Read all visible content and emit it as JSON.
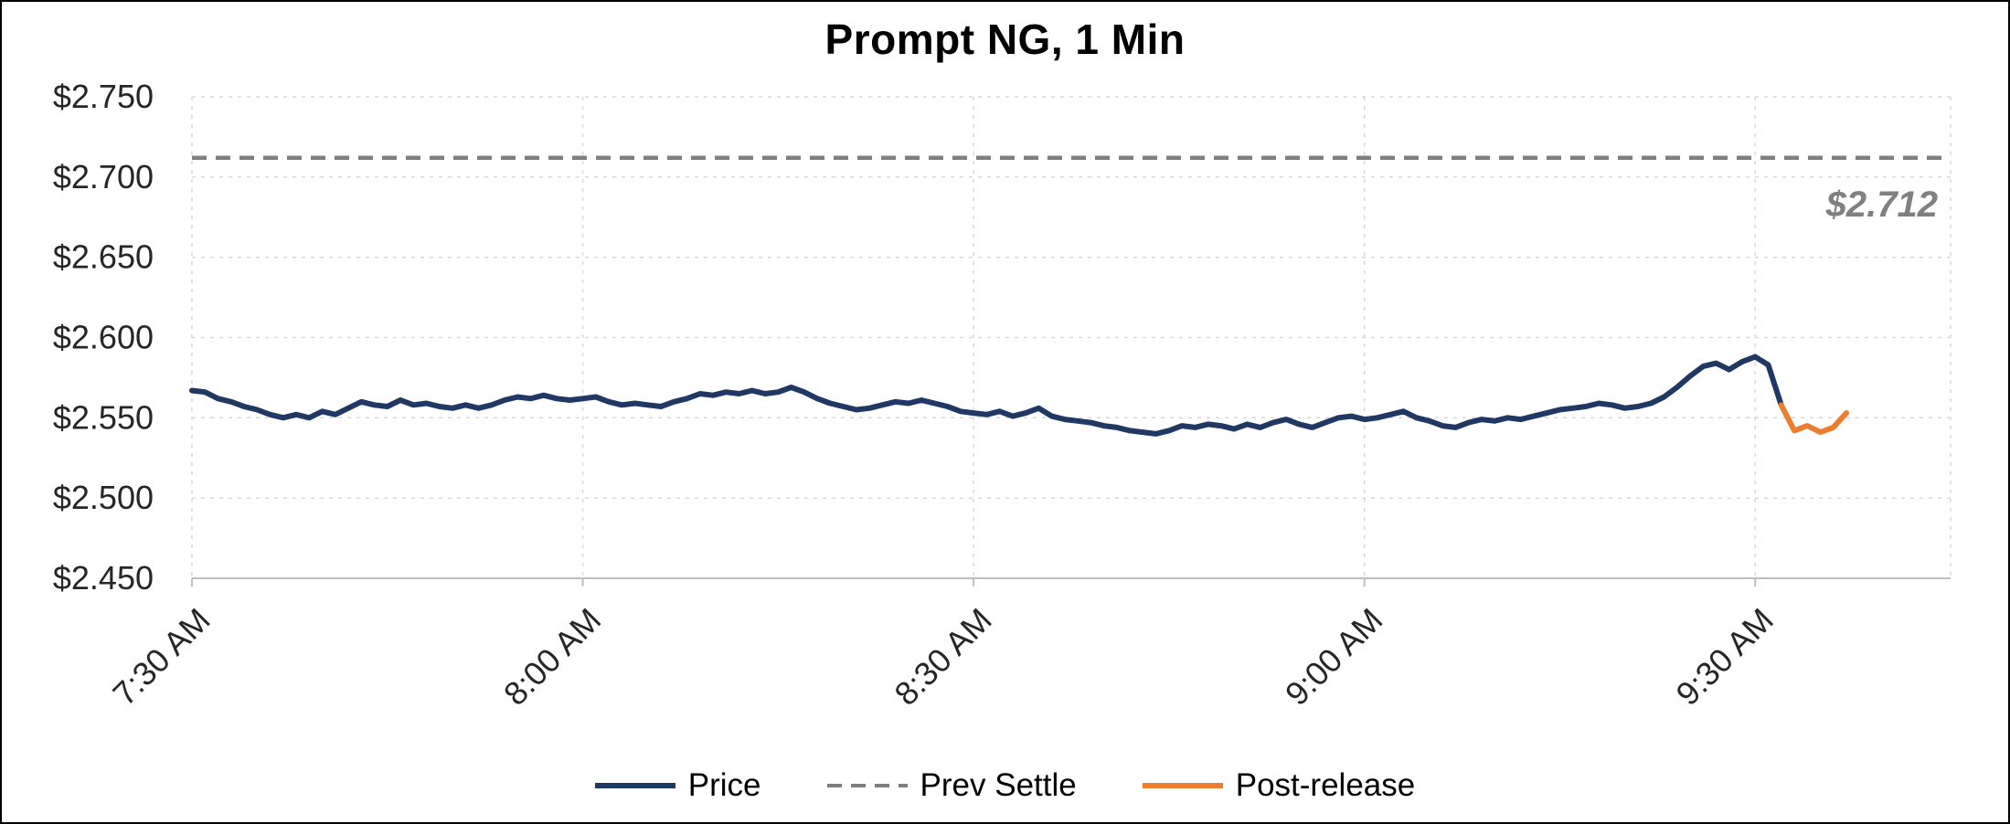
{
  "title": "Prompt NG, 1 Min",
  "colors": {
    "price": "#1F3864",
    "prev_settle": "#7F7F7F",
    "post_release": "#ED7D31",
    "gridline": "#D9D9D9",
    "axis": "#BFBFBF",
    "tick_label": "#262626",
    "annotation": "#808080",
    "title": "#000000"
  },
  "annotation": {
    "text": "$2.712"
  },
  "legend": {
    "items": [
      {
        "label": "Price",
        "color": "#1F3864",
        "style": "solid"
      },
      {
        "label": "Prev Settle",
        "color": "#7F7F7F",
        "style": "dashed"
      },
      {
        "label": "Post-release",
        "color": "#ED7D31",
        "style": "solid"
      }
    ]
  },
  "chart_data": {
    "type": "line",
    "title": "Prompt NG, 1 Min",
    "xlabel": "",
    "ylabel": "",
    "x_unit": "minutes after 7:30 AM, 1-minute interval",
    "xlim": [
      0,
      135
    ],
    "ylim": [
      2.45,
      2.75
    ],
    "grid": true,
    "legend_position": "bottom",
    "y_tick_step": 0.05,
    "y_tick_labels": [
      "$2.450",
      "$2.500",
      "$2.550",
      "$2.600",
      "$2.650",
      "$2.700",
      "$2.750"
    ],
    "x_ticks": [
      {
        "t": 0,
        "label": "7:30 AM"
      },
      {
        "t": 30,
        "label": "8:00 AM"
      },
      {
        "t": 60,
        "label": "8:30 AM"
      },
      {
        "t": 90,
        "label": "9:00 AM"
      },
      {
        "t": 120,
        "label": "9:30 AM"
      }
    ],
    "prev_settle_value": 2.712,
    "annotation_text": "$2.712",
    "series": [
      {
        "name": "Price",
        "color": "#1F3864",
        "style": "solid",
        "points": [
          [
            0,
            2.567
          ],
          [
            1,
            2.566
          ],
          [
            2,
            2.562
          ],
          [
            3,
            2.56
          ],
          [
            4,
            2.557
          ],
          [
            5,
            2.555
          ],
          [
            6,
            2.552
          ],
          [
            7,
            2.55
          ],
          [
            8,
            2.552
          ],
          [
            9,
            2.55
          ],
          [
            10,
            2.554
          ],
          [
            11,
            2.552
          ],
          [
            12,
            2.556
          ],
          [
            13,
            2.56
          ],
          [
            14,
            2.558
          ],
          [
            15,
            2.557
          ],
          [
            16,
            2.561
          ],
          [
            17,
            2.558
          ],
          [
            18,
            2.559
          ],
          [
            19,
            2.557
          ],
          [
            20,
            2.556
          ],
          [
            21,
            2.558
          ],
          [
            22,
            2.556
          ],
          [
            23,
            2.558
          ],
          [
            24,
            2.561
          ],
          [
            25,
            2.563
          ],
          [
            26,
            2.562
          ],
          [
            27,
            2.564
          ],
          [
            28,
            2.562
          ],
          [
            29,
            2.561
          ],
          [
            30,
            2.562
          ],
          [
            31,
            2.563
          ],
          [
            32,
            2.56
          ],
          [
            33,
            2.558
          ],
          [
            34,
            2.559
          ],
          [
            35,
            2.558
          ],
          [
            36,
            2.557
          ],
          [
            37,
            2.56
          ],
          [
            38,
            2.562
          ],
          [
            39,
            2.565
          ],
          [
            40,
            2.564
          ],
          [
            41,
            2.566
          ],
          [
            42,
            2.565
          ],
          [
            43,
            2.567
          ],
          [
            44,
            2.565
          ],
          [
            45,
            2.566
          ],
          [
            46,
            2.569
          ],
          [
            47,
            2.566
          ],
          [
            48,
            2.562
          ],
          [
            49,
            2.559
          ],
          [
            50,
            2.557
          ],
          [
            51,
            2.555
          ],
          [
            52,
            2.556
          ],
          [
            53,
            2.558
          ],
          [
            54,
            2.56
          ],
          [
            55,
            2.559
          ],
          [
            56,
            2.561
          ],
          [
            57,
            2.559
          ],
          [
            58,
            2.557
          ],
          [
            59,
            2.554
          ],
          [
            60,
            2.553
          ],
          [
            61,
            2.552
          ],
          [
            62,
            2.554
          ],
          [
            63,
            2.551
          ],
          [
            64,
            2.553
          ],
          [
            65,
            2.556
          ],
          [
            66,
            2.551
          ],
          [
            67,
            2.549
          ],
          [
            68,
            2.548
          ],
          [
            69,
            2.547
          ],
          [
            70,
            2.545
          ],
          [
            71,
            2.544
          ],
          [
            72,
            2.542
          ],
          [
            73,
            2.541
          ],
          [
            74,
            2.54
          ],
          [
            75,
            2.542
          ],
          [
            76,
            2.545
          ],
          [
            77,
            2.544
          ],
          [
            78,
            2.546
          ],
          [
            79,
            2.545
          ],
          [
            80,
            2.543
          ],
          [
            81,
            2.546
          ],
          [
            82,
            2.544
          ],
          [
            83,
            2.547
          ],
          [
            84,
            2.549
          ],
          [
            85,
            2.546
          ],
          [
            86,
            2.544
          ],
          [
            87,
            2.547
          ],
          [
            88,
            2.55
          ],
          [
            89,
            2.551
          ],
          [
            90,
            2.549
          ],
          [
            91,
            2.55
          ],
          [
            92,
            2.552
          ],
          [
            93,
            2.554
          ],
          [
            94,
            2.55
          ],
          [
            95,
            2.548
          ],
          [
            96,
            2.545
          ],
          [
            97,
            2.544
          ],
          [
            98,
            2.547
          ],
          [
            99,
            2.549
          ],
          [
            100,
            2.548
          ],
          [
            101,
            2.55
          ],
          [
            102,
            2.549
          ],
          [
            103,
            2.551
          ],
          [
            104,
            2.553
          ],
          [
            105,
            2.555
          ],
          [
            106,
            2.556
          ],
          [
            107,
            2.557
          ],
          [
            108,
            2.559
          ],
          [
            109,
            2.558
          ],
          [
            110,
            2.556
          ],
          [
            111,
            2.557
          ],
          [
            112,
            2.559
          ],
          [
            113,
            2.563
          ],
          [
            114,
            2.569
          ],
          [
            115,
            2.576
          ],
          [
            116,
            2.582
          ],
          [
            117,
            2.584
          ],
          [
            118,
            2.58
          ],
          [
            119,
            2.585
          ],
          [
            120,
            2.588
          ],
          [
            121,
            2.583
          ],
          [
            122,
            2.558
          ]
        ]
      },
      {
        "name": "Prev Settle",
        "color": "#7F7F7F",
        "style": "dashed",
        "value": 2.712
      },
      {
        "name": "Post-release",
        "color": "#ED7D31",
        "style": "solid",
        "points": [
          [
            122,
            2.558
          ],
          [
            123,
            2.542
          ],
          [
            124,
            2.545
          ],
          [
            125,
            2.541
          ],
          [
            126,
            2.544
          ],
          [
            127,
            2.553
          ]
        ]
      }
    ]
  }
}
